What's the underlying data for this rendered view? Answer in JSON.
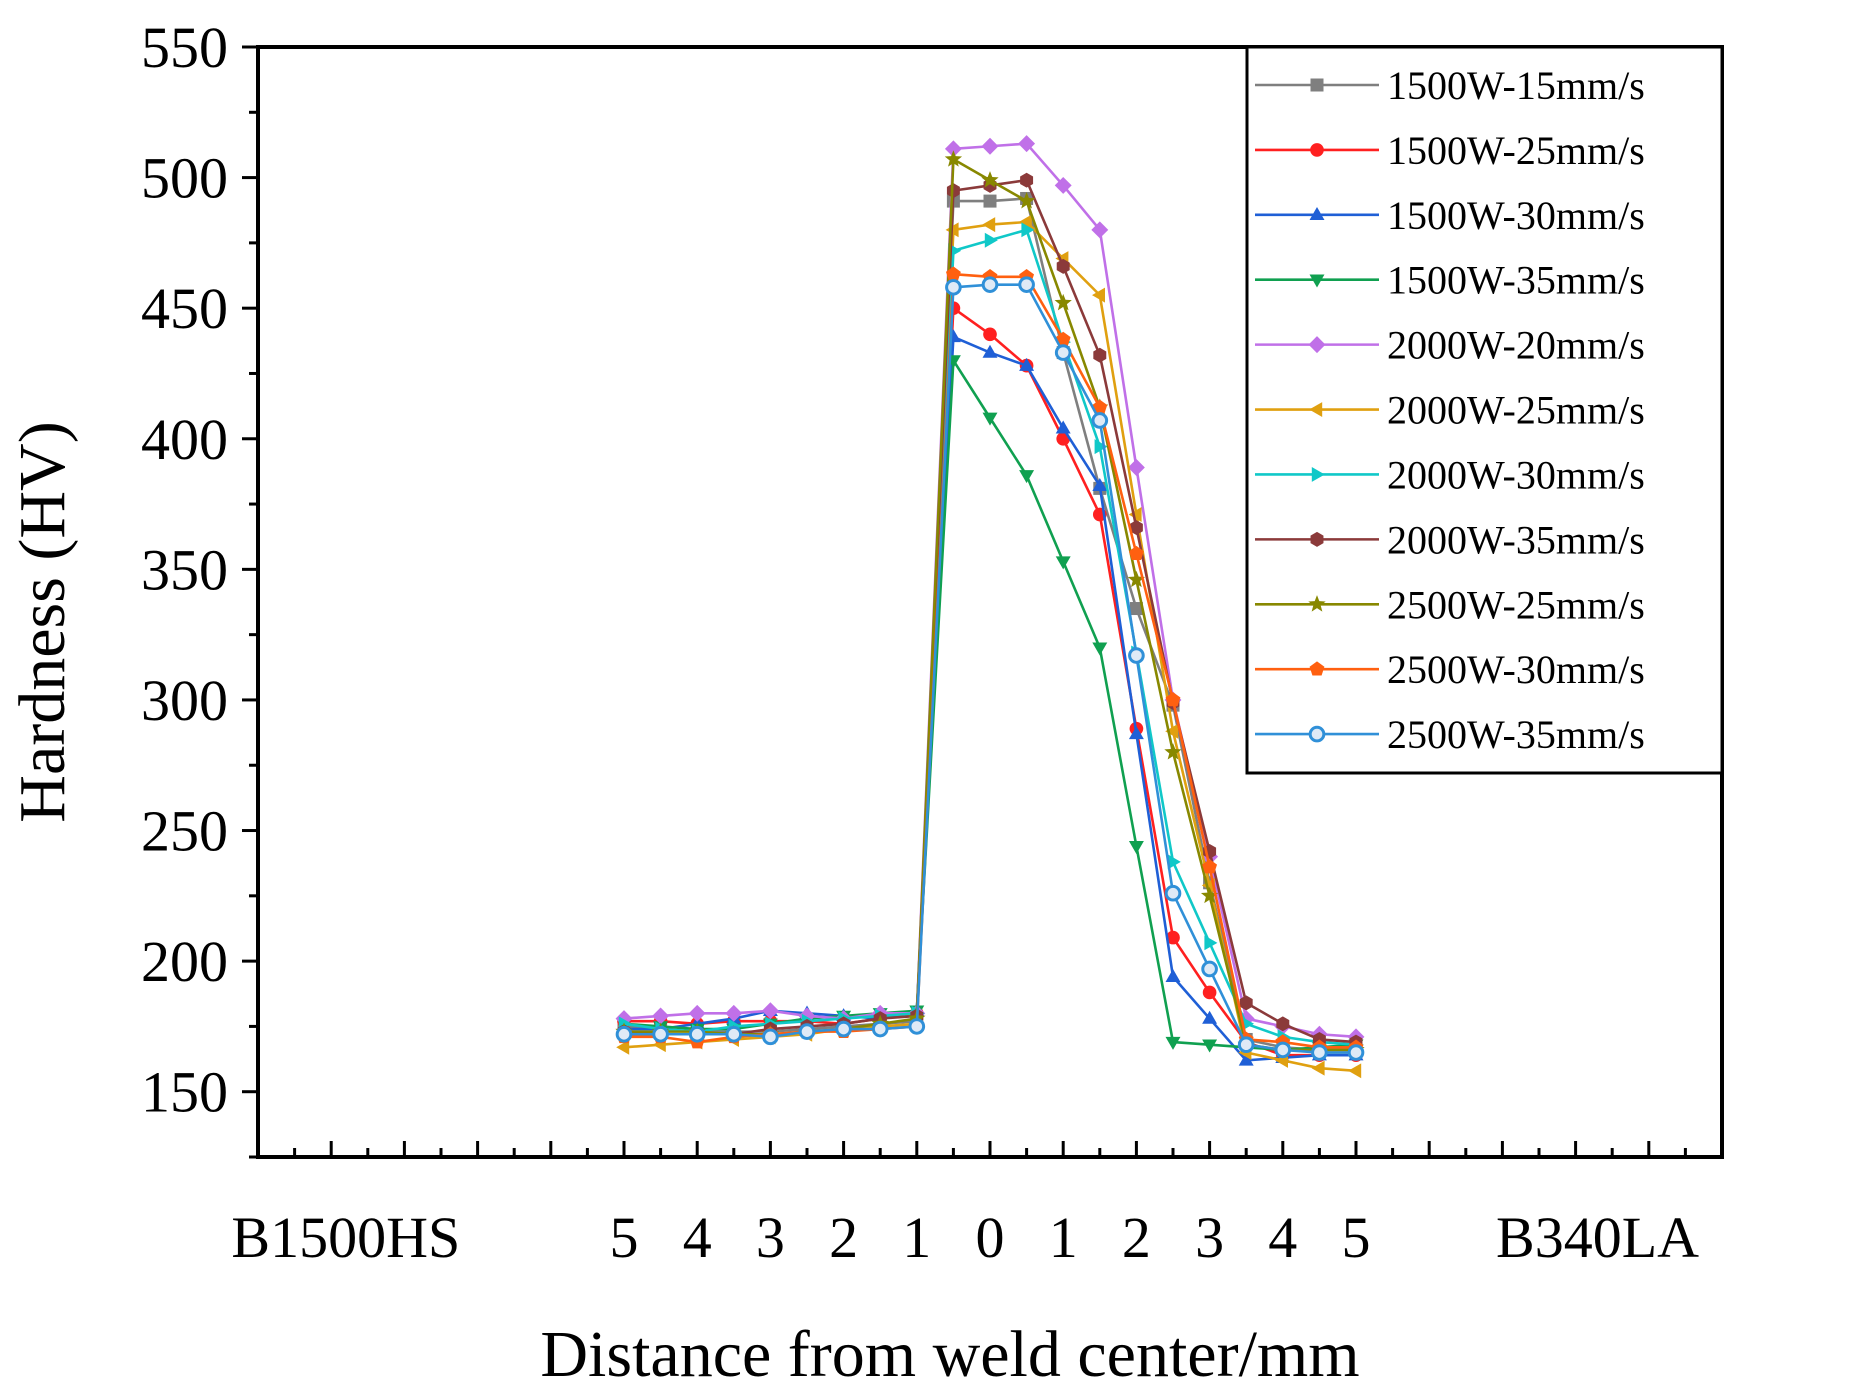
{
  "chart_data": {
    "type": "line",
    "title": "",
    "xlabel": "Distance from weld center/mm",
    "ylabel": "Hardness (HV)",
    "ylim": [
      125,
      550
    ],
    "yticks": [
      150,
      200,
      250,
      300,
      350,
      400,
      450,
      500,
      550
    ],
    "xlim": [
      -10,
      10
    ],
    "xtick_positions": [
      -10,
      -7,
      -6,
      -5,
      -4,
      -3,
      -2,
      -1,
      0,
      1,
      2,
      3,
      4,
      5,
      6,
      7,
      10
    ],
    "xtick_labels": [
      "B1500HS",
      "5",
      "4",
      "3",
      "2",
      "1",
      "0",
      "1",
      "2",
      "3",
      "4",
      "5",
      "B340LA"
    ],
    "xtick_label_positions": [
      -8.8,
      -5,
      -4,
      -3,
      -2,
      -1,
      0,
      1,
      2,
      3,
      4,
      5,
      8.3
    ],
    "legend_position": "top-right",
    "x": [
      -5,
      -4.5,
      -4,
      -3.5,
      -3,
      -2.5,
      -2,
      -1.5,
      -1,
      -0.5,
      0,
      0.5,
      1,
      1.5,
      2,
      2.5,
      3,
      3.5,
      4,
      4.5,
      5
    ],
    "series": [
      {
        "name": "1500W-15mm/s",
        "color": "#7f7f7f",
        "marker": "square",
        "values": [
          175,
          174,
          173,
          173,
          173,
          174,
          175,
          176,
          177,
          491,
          491,
          492,
          433,
          381,
          335,
          298,
          230,
          170,
          167,
          166,
          166
        ]
      },
      {
        "name": "1500W-25mm/s",
        "color": "#ff2020",
        "marker": "circle",
        "values": [
          177,
          177,
          176,
          177,
          177,
          177,
          176,
          178,
          180,
          450,
          440,
          428,
          400,
          371,
          289,
          209,
          188,
          169,
          164,
          164,
          164
        ]
      },
      {
        "name": "1500W-30mm/s",
        "color": "#1f5fd6",
        "marker": "triangle-up",
        "values": [
          174,
          174,
          176,
          178,
          181,
          180,
          179,
          178,
          181,
          439,
          433,
          428,
          404,
          382,
          287,
          194,
          178,
          162,
          163,
          164,
          164
        ]
      },
      {
        "name": "1500W-35mm/s",
        "color": "#10a050",
        "marker": "triangle-down",
        "values": [
          176,
          175,
          174,
          174,
          176,
          178,
          179,
          180,
          181,
          430,
          408,
          386,
          353,
          320,
          244,
          169,
          168,
          167,
          166,
          167,
          168
        ]
      },
      {
        "name": "2000W-20mm/s",
        "color": "#c070e8",
        "marker": "diamond",
        "values": [
          178,
          179,
          180,
          180,
          181,
          179,
          178,
          180,
          180,
          511,
          512,
          513,
          497,
          480,
          389,
          300,
          240,
          178,
          175,
          172,
          171
        ]
      },
      {
        "name": "2000W-25mm/s",
        "color": "#e0a010",
        "marker": "triangle-left",
        "values": [
          167,
          168,
          169,
          170,
          171,
          172,
          174,
          175,
          176,
          480,
          482,
          483,
          469,
          455,
          371,
          288,
          229,
          165,
          162,
          159,
          158
        ]
      },
      {
        "name": "2000W-30mm/s",
        "color": "#10c8c8",
        "marker": "triangle-right",
        "values": [
          176,
          174,
          173,
          175,
          176,
          177,
          178,
          179,
          180,
          472,
          476,
          480,
          437,
          397,
          318,
          238,
          207,
          176,
          171,
          169,
          168
        ]
      },
      {
        "name": "2000W-35mm/s",
        "color": "#8b3a3a",
        "marker": "hexagon",
        "values": [
          173,
          172,
          172,
          172,
          174,
          175,
          176,
          178,
          179,
          495,
          497,
          499,
          466,
          432,
          366,
          299,
          242,
          184,
          176,
          170,
          169
        ]
      },
      {
        "name": "2500W-25mm/s",
        "color": "#888800",
        "marker": "star",
        "values": [
          173,
          173,
          173,
          172,
          172,
          173,
          174,
          176,
          178,
          507,
          499,
          491,
          452,
          412,
          346,
          280,
          225,
          168,
          166,
          166,
          166
        ]
      },
      {
        "name": "2500W-30mm/s",
        "color": "#ff6010",
        "marker": "pentagon",
        "values": [
          171,
          171,
          169,
          171,
          172,
          173,
          173,
          174,
          175,
          463,
          462,
          462,
          438,
          412,
          356,
          300,
          236,
          170,
          169,
          167,
          167
        ]
      },
      {
        "name": "2500W-35mm/s",
        "color": "#3090d8",
        "marker": "circle-ring",
        "values": [
          172,
          172,
          172,
          172,
          171,
          173,
          174,
          174,
          175,
          458,
          459,
          459,
          433,
          407,
          317,
          226,
          197,
          168,
          166,
          165,
          165
        ]
      }
    ]
  }
}
